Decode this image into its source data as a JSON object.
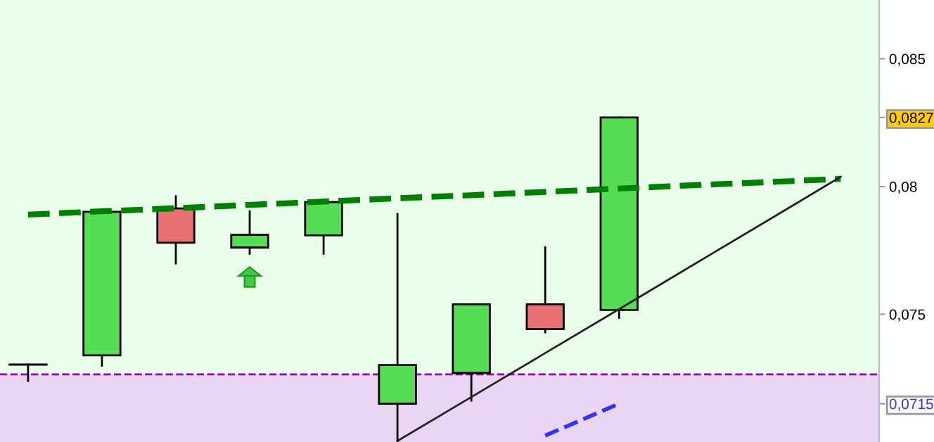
{
  "chart_data": {
    "type": "candlestick",
    "categories": [
      null,
      null,
      null,
      null,
      null,
      null,
      null,
      null,
      null,
      null,
      null,
      null
    ],
    "ohlc": [
      [
        0.07303,
        0.07303,
        0.07239,
        0.07303
      ],
      [
        0.07339,
        0.07901,
        0.07299,
        0.07901
      ],
      [
        0.07914,
        0.07962,
        0.07699,
        0.0778
      ],
      [
        0.07761,
        0.07903,
        0.07737,
        0.07811
      ],
      [
        0.07809,
        0.07939,
        0.07737,
        0.07939
      ],
      [
        0.0715,
        0.07892,
        0.07,
        0.07301
      ],
      [
        0.0727,
        0.07539,
        0.07162,
        0.07539
      ],
      [
        0.07539,
        0.07762,
        0.07429,
        0.07442
      ],
      [
        0.07517,
        0.0827,
        0.07486,
        0.0827
      ],
      null,
      null,
      null
    ],
    "colors": [
      "#000000",
      "#55dd55",
      "#e87070",
      "#55dd55",
      "#55dd55",
      "#55dd55",
      "#55dd55",
      "#e87070",
      "#55dd55",
      null,
      null,
      null
    ],
    "series": [
      {
        "type": "line",
        "values": [
          0.0789,
          0.07903,
          0.07915,
          0.07928,
          0.07941,
          0.07954,
          0.07966,
          0.07979,
          0.07992,
          0.08005,
          0.08017,
          0.0803
        ],
        "color": "#008000",
        "line_style": "dashed"
      },
      {
        "type": "line",
        "values": [
          null,
          null,
          null,
          null,
          null,
          0.07004,
          0.07176,
          0.07348,
          0.0752,
          0.07693,
          0.07865,
          0.08038
        ],
        "color": "#222222",
        "line_style": "solid"
      },
      {
        "type": "line",
        "values": [
          null,
          null,
          null,
          null,
          null,
          null,
          null,
          0.07025,
          0.0715,
          null,
          null,
          null
        ],
        "color": "#3333ff",
        "line_style": "dashed"
      }
    ],
    "ylim": [
      0.07,
      0.0873
    ],
    "yticks": [
      {
        "value": 0.0715,
        "label": "0,0715"
      },
      {
        "value": 0.075,
        "label": "0,075"
      },
      {
        "value": 0.08,
        "label": "0,08"
      },
      {
        "value": 0.0827,
        "label": "0,0827"
      },
      {
        "value": 0.085,
        "label": "0,085"
      }
    ],
    "ref_lines": [
      {
        "axis": "y",
        "value": 0.07265,
        "color": "#9900cc",
        "line_style": "dashed"
      }
    ],
    "bands": [
      {
        "axis": "y",
        "from": 0.07,
        "to": 0.07265,
        "color": "#ead6f3"
      }
    ],
    "tick_labels": "y",
    "grid": false
  }
}
